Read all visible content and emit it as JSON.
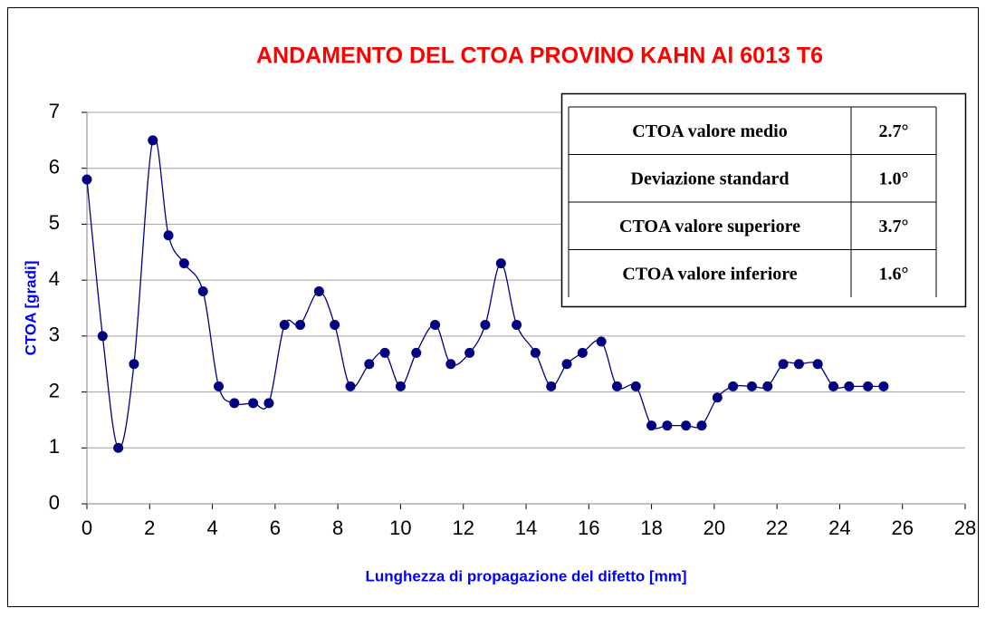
{
  "chart_data": {
    "type": "line",
    "title": "ANDAMENTO DEL CTOA  PROVINO KAHN Al 6013 T6",
    "x_label": "Lunghezza di propagazione del difetto [mm]",
    "y_label": "CTOA [gradi]",
    "x": [
      0,
      0.5,
      1.0,
      1.5,
      2.1,
      2.6,
      3.1,
      3.7,
      4.2,
      4.7,
      5.3,
      5.8,
      6.3,
      6.8,
      7.4,
      7.9,
      8.4,
      9.0,
      9.5,
      10.0,
      10.5,
      11.1,
      11.6,
      12.2,
      12.7,
      13.2,
      13.7,
      14.3,
      14.8,
      15.3,
      15.8,
      16.4,
      16.9,
      17.5,
      18.0,
      18.5,
      19.1,
      19.6,
      20.1,
      20.6,
      21.2,
      21.7,
      22.2,
      22.7,
      23.3,
      23.8,
      24.3,
      24.9,
      25.4
    ],
    "series": [
      {
        "name": "CTOA",
        "color": "#000080",
        "values": [
          5.8,
          3.0,
          1.0,
          2.5,
          6.5,
          4.8,
          4.3,
          3.8,
          2.1,
          1.8,
          1.8,
          1.8,
          3.2,
          3.2,
          3.8,
          3.2,
          2.1,
          2.5,
          2.7,
          2.1,
          2.7,
          3.2,
          2.5,
          2.7,
          3.2,
          4.3,
          3.2,
          2.7,
          2.1,
          2.5,
          2.7,
          2.9,
          2.1,
          2.1,
          1.4,
          1.4,
          1.4,
          1.4,
          1.9,
          2.1,
          2.1,
          2.1,
          2.5,
          2.5,
          2.5,
          2.1,
          2.1,
          2.1,
          2.1
        ]
      }
    ],
    "xlim": [
      0,
      28
    ],
    "xticks": [
      0,
      2,
      4,
      6,
      8,
      10,
      12,
      14,
      16,
      18,
      20,
      22,
      24,
      26,
      28
    ],
    "ylim": [
      0,
      7
    ],
    "yticks": [
      0,
      1,
      2,
      3,
      4,
      5,
      6,
      7
    ],
    "grid": true
  },
  "table": {
    "rows": [
      [
        "CTOA valore medio",
        "2.7°"
      ],
      [
        "Deviazione standard",
        "1.0°"
      ],
      [
        "CTOA valore superiore",
        "3.7°"
      ],
      [
        "CTOA valore inferiore",
        "1.6°"
      ]
    ]
  }
}
